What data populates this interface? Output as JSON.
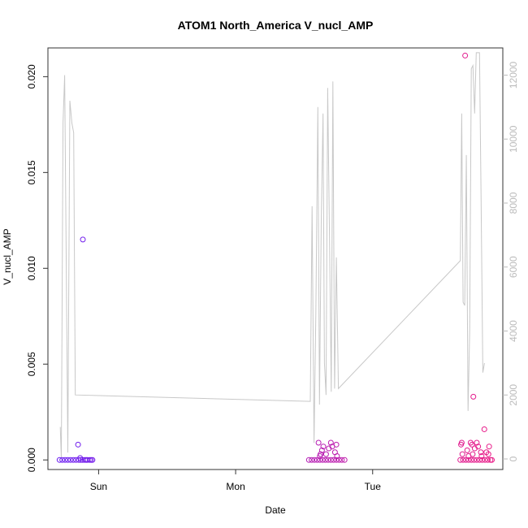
{
  "chart_data": {
    "type": "scatter",
    "title": "ATOM1 North_America V_nucl_AMP",
    "xlabel": "Date",
    "ylabel": "V_nucl_AMP",
    "x_ticks": [
      "Sun",
      "Mon",
      "Tue"
    ],
    "x_tick_days": [
      1.0,
      2.0,
      3.0
    ],
    "xlim_days": [
      0.63,
      3.95
    ],
    "ylim": [
      -0.0005,
      0.0215
    ],
    "y_ticks": [
      0.0,
      0.005,
      0.01,
      0.015,
      0.02
    ],
    "y_tick_labels": [
      "0.000",
      "0.005",
      "0.010",
      "0.015",
      "0.020"
    ],
    "y2_ticks": [
      0,
      2000,
      4000,
      6000,
      8000,
      10000,
      12000
    ],
    "y2_tick_labels": [
      "0",
      "2000",
      "4000",
      "6000",
      "8000",
      "10000",
      "12000"
    ],
    "y2lim": [
      -330,
      12850
    ],
    "grid": false,
    "colors": {
      "line": "#c8c8c8",
      "points_start": "#6a1cf2",
      "points_end": "#ea1a86",
      "axis": "#333333",
      "right_axis": "#bbbbbb"
    },
    "series": [
      {
        "axis": "left",
        "points": [
          {
            "day": 0.715,
            "value": 0.0
          },
          {
            "day": 0.735,
            "value": 0.0
          },
          {
            "day": 0.755,
            "value": 0.0
          },
          {
            "day": 0.775,
            "value": 0.0
          },
          {
            "day": 0.795,
            "value": 0.0
          },
          {
            "day": 0.815,
            "value": 0.0
          },
          {
            "day": 0.835,
            "value": 0.0
          },
          {
            "day": 0.855,
            "value": 0.0
          },
          {
            "day": 0.87,
            "value": 0.0
          },
          {
            "day": 0.885,
            "value": 0.0
          },
          {
            "day": 0.9,
            "value": 0.0
          },
          {
            "day": 0.91,
            "value": 0.0
          },
          {
            "day": 0.92,
            "value": 0.0
          },
          {
            "day": 0.935,
            "value": 0.0
          },
          {
            "day": 0.945,
            "value": 0.0
          },
          {
            "day": 0.955,
            "value": 0.0
          },
          {
            "day": 0.85,
            "value": 0.0008
          },
          {
            "day": 0.865,
            "value": 0.0001
          },
          {
            "day": 0.885,
            "value": 0.0115
          },
          {
            "day": 2.535,
            "value": 0.0
          },
          {
            "day": 2.555,
            "value": 0.0
          },
          {
            "day": 2.575,
            "value": 0.0
          },
          {
            "day": 2.595,
            "value": 0.0
          },
          {
            "day": 2.615,
            "value": 0.0
          },
          {
            "day": 2.635,
            "value": 0.0
          },
          {
            "day": 2.655,
            "value": 0.0
          },
          {
            "day": 2.675,
            "value": 0.0
          },
          {
            "day": 2.695,
            "value": 0.0
          },
          {
            "day": 2.715,
            "value": 0.0
          },
          {
            "day": 2.735,
            "value": 0.0
          },
          {
            "day": 2.755,
            "value": 0.0
          },
          {
            "day": 2.775,
            "value": 0.0
          },
          {
            "day": 2.795,
            "value": 0.0
          },
          {
            "day": 2.615,
            "value": 0.0002
          },
          {
            "day": 2.63,
            "value": 0.0005
          },
          {
            "day": 2.605,
            "value": 0.0009
          },
          {
            "day": 2.64,
            "value": 0.0007
          },
          {
            "day": 2.68,
            "value": 0.0006
          },
          {
            "day": 2.695,
            "value": 0.0009
          },
          {
            "day": 2.705,
            "value": 0.0007
          },
          {
            "day": 2.725,
            "value": 0.0004
          },
          {
            "day": 2.735,
            "value": 0.0008
          },
          {
            "day": 2.66,
            "value": 0.0003
          },
          {
            "day": 2.62,
            "value": 0.0003
          },
          {
            "day": 2.74,
            "value": 0.0002
          },
          {
            "day": 3.64,
            "value": 0.0
          },
          {
            "day": 3.66,
            "value": 0.0
          },
          {
            "day": 3.68,
            "value": 0.0
          },
          {
            "day": 3.7,
            "value": 0.0
          },
          {
            "day": 3.72,
            "value": 0.0
          },
          {
            "day": 3.74,
            "value": 0.0
          },
          {
            "day": 3.76,
            "value": 0.0
          },
          {
            "day": 3.78,
            "value": 0.0
          },
          {
            "day": 3.8,
            "value": 0.0
          },
          {
            "day": 3.82,
            "value": 0.0
          },
          {
            "day": 3.84,
            "value": 0.0
          },
          {
            "day": 3.86,
            "value": 0.0
          },
          {
            "day": 3.87,
            "value": 0.0
          },
          {
            "day": 3.65,
            "value": 0.0009
          },
          {
            "day": 3.645,
            "value": 0.0008
          },
          {
            "day": 3.69,
            "value": 0.0005
          },
          {
            "day": 3.715,
            "value": 0.0009
          },
          {
            "day": 3.725,
            "value": 0.0008
          },
          {
            "day": 3.745,
            "value": 0.0006
          },
          {
            "day": 3.76,
            "value": 0.0009
          },
          {
            "day": 3.77,
            "value": 0.0007
          },
          {
            "day": 3.79,
            "value": 0.0004
          },
          {
            "day": 3.815,
            "value": 0.0016
          },
          {
            "day": 3.85,
            "value": 0.0007
          },
          {
            "day": 3.735,
            "value": 0.0033
          },
          {
            "day": 3.675,
            "value": 0.0211
          },
          {
            "day": 3.7,
            "value": 0.0002
          },
          {
            "day": 3.73,
            "value": 0.0003
          },
          {
            "day": 3.83,
            "value": 0.0004
          },
          {
            "day": 3.655,
            "value": 0.0003
          },
          {
            "day": 3.795,
            "value": 0.0002
          },
          {
            "day": 3.845,
            "value": 0.0003
          }
        ]
      },
      {
        "axis": "right",
        "points": [
          {
            "day": 0.72,
            "value": 1000
          },
          {
            "day": 0.728,
            "value": 0
          },
          {
            "day": 0.74,
            "value": 10500
          },
          {
            "day": 0.752,
            "value": 12000
          },
          {
            "day": 0.764,
            "value": 6000
          },
          {
            "day": 0.775,
            "value": 200
          },
          {
            "day": 0.79,
            "value": 11200
          },
          {
            "day": 0.805,
            "value": 10500
          },
          {
            "day": 0.818,
            "value": 10200
          },
          {
            "day": 0.83,
            "value": 2000
          },
          {
            "day": 2.545,
            "value": 1800
          },
          {
            "day": 2.558,
            "value": 7900
          },
          {
            "day": 2.572,
            "value": 500
          },
          {
            "day": 2.585,
            "value": 4500
          },
          {
            "day": 2.6,
            "value": 11000
          },
          {
            "day": 2.612,
            "value": 1700
          },
          {
            "day": 2.625,
            "value": 7500
          },
          {
            "day": 2.638,
            "value": 10800
          },
          {
            "day": 2.648,
            "value": 3000
          },
          {
            "day": 2.66,
            "value": 2000
          },
          {
            "day": 2.672,
            "value": 11600
          },
          {
            "day": 2.685,
            "value": 7000
          },
          {
            "day": 2.698,
            "value": 2100
          },
          {
            "day": 2.71,
            "value": 11800
          },
          {
            "day": 2.722,
            "value": 2200
          },
          {
            "day": 2.735,
            "value": 6300
          },
          {
            "day": 2.75,
            "value": 2200
          },
          {
            "day": 3.64,
            "value": 6200
          },
          {
            "day": 3.65,
            "value": 10800
          },
          {
            "day": 3.66,
            "value": 4900
          },
          {
            "day": 3.672,
            "value": 4800
          },
          {
            "day": 3.684,
            "value": 9500
          },
          {
            "day": 3.696,
            "value": 1500
          },
          {
            "day": 3.708,
            "value": 4000
          },
          {
            "day": 3.72,
            "value": 12200
          },
          {
            "day": 3.732,
            "value": 12300
          },
          {
            "day": 3.744,
            "value": 10800
          },
          {
            "day": 3.756,
            "value": 12700
          },
          {
            "day": 3.768,
            "value": 12700
          },
          {
            "day": 3.78,
            "value": 12700
          },
          {
            "day": 3.792,
            "value": 8000
          },
          {
            "day": 3.804,
            "value": 2700
          },
          {
            "day": 3.816,
            "value": 3000
          }
        ]
      }
    ]
  }
}
